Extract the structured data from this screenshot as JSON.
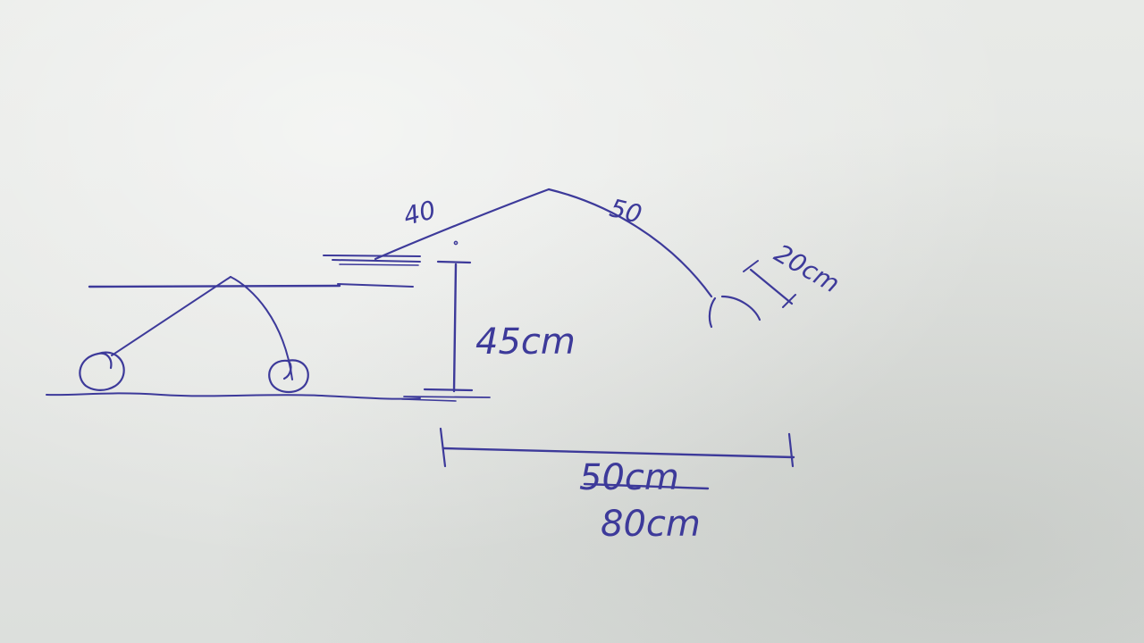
{
  "ink_color": "#3d3a9a",
  "paper_color": "#e4e6e3",
  "labels": {
    "upper_arm": "40",
    "forearm": "50",
    "gripper": "20cm",
    "height": "45cm",
    "reach_crossed": "50cm",
    "reach": "80cm"
  }
}
